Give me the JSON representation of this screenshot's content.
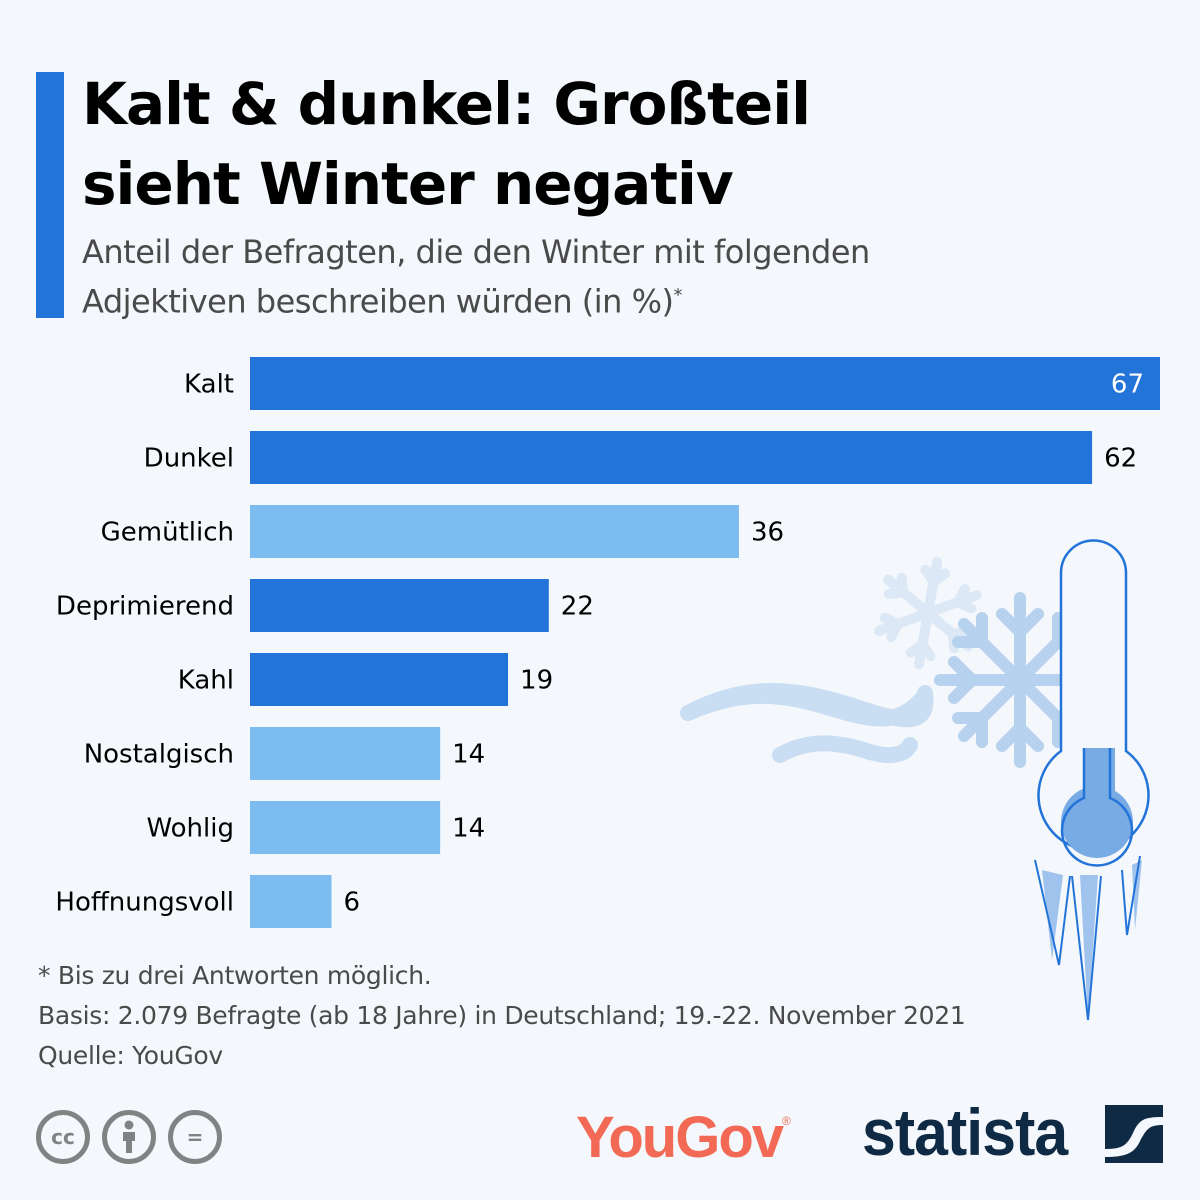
{
  "header": {
    "title_line1": "Kalt & dunkel: Großteil",
    "title_line2": "sieht Winter negativ",
    "subtitle_line1": "Anteil der Befragten, die den Winter mit folgenden",
    "subtitle_line2": "Adjektiven beschreiben würden (in %)",
    "subtitle_marker": "*"
  },
  "colors": {
    "accent": "#2374d9",
    "negative_bar": "#2374d9",
    "positive_bar": "#7dbcf0",
    "background": "#f4f7fb",
    "yougov": "#f26a55",
    "statista": "#0f2a45"
  },
  "chart_data": {
    "type": "bar",
    "orientation": "horizontal",
    "title": "Kalt & dunkel: Großteil sieht Winter negativ",
    "subtitle": "Anteil der Befragten, die den Winter mit folgenden Adjektiven beschreiben würden (in %)*",
    "xlabel": "",
    "ylabel": "",
    "unit": "%",
    "xlim": [
      0,
      67
    ],
    "grid": false,
    "legend": "none",
    "categories": [
      "Kalt",
      "Dunkel",
      "Gemütlich",
      "Deprimierend",
      "Kahl",
      "Nostalgisch",
      "Wohlig",
      "Hoffnungsvoll"
    ],
    "values": [
      67,
      62,
      36,
      22,
      19,
      14,
      14,
      6
    ],
    "sentiment": [
      "negative",
      "negative",
      "positive",
      "negative",
      "negative",
      "positive",
      "positive",
      "positive"
    ]
  },
  "footer": {
    "note": "* Bis zu drei Antworten möglich.",
    "basis": "Basis: 2.079 Befragte (ab 18 Jahre) in Deutschland; 19.-22. November 2021",
    "source": "Quelle: YouGov"
  },
  "logos": {
    "yougov": "YouGov",
    "yougov_reg": "®",
    "statista": "statista",
    "license_icons": [
      "cc-icon",
      "attribution-icon",
      "no-derivatives-icon"
    ],
    "cc_text": "cc",
    "nd_text": "="
  }
}
